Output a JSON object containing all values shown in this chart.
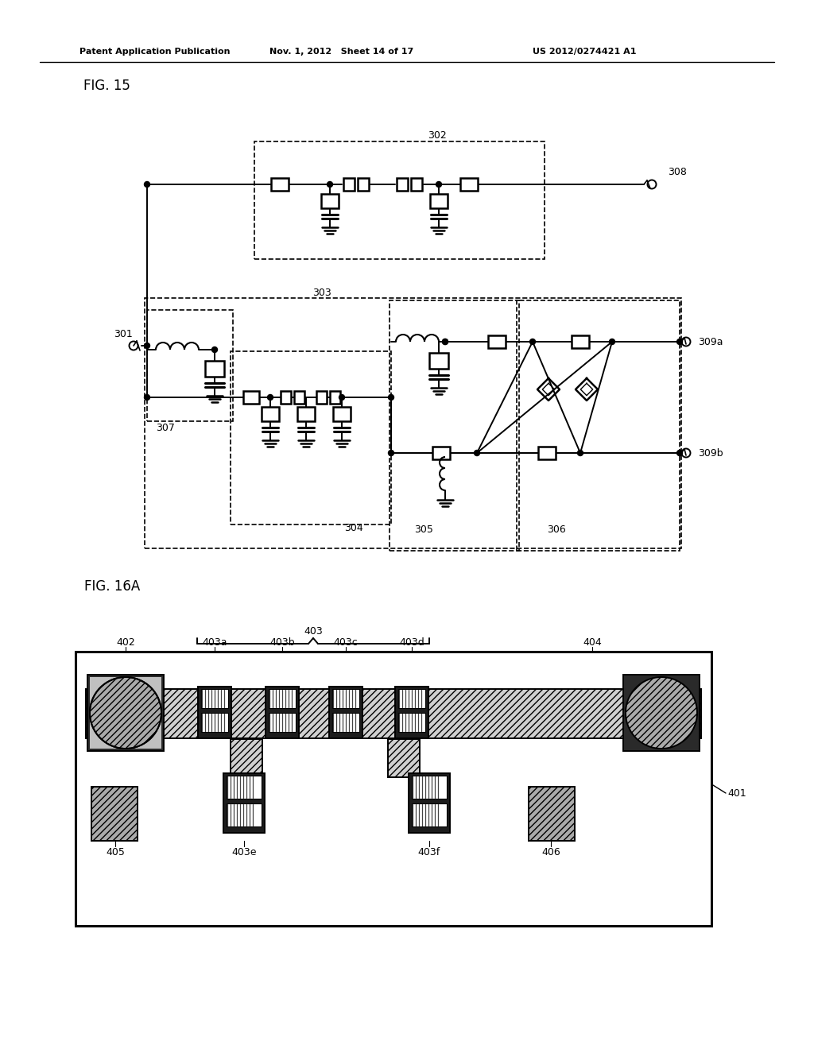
{
  "header_left": "Patent Application Publication",
  "header_mid": "Nov. 1, 2012   Sheet 14 of 17",
  "header_right": "US 2012/0274421 A1",
  "fig15_label": "FIG. 15",
  "fig16a_label": "FIG. 16A",
  "bg": "#ffffff"
}
